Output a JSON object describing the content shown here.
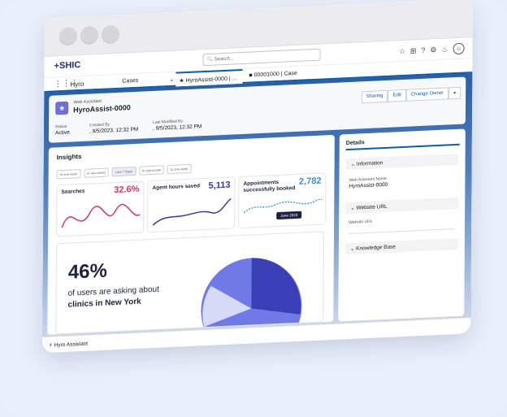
{
  "app": {
    "logo": "+SHIC",
    "workspace": "Hyro",
    "object_nav": "Cases"
  },
  "search": {
    "placeholder": "Search..."
  },
  "tabs": [
    {
      "label": "HyroAssist-0000 | ..."
    },
    {
      "label": "00001000 | Case"
    }
  ],
  "record": {
    "type": "Web Assistant",
    "name": "HyroAssist-0000",
    "buttons": [
      "Sharing",
      "Edit",
      "Change Owner"
    ],
    "status_label": "Status",
    "status_value": "Active",
    "created_label": "Created By",
    "created_value": ", 9/5/2023, 12:32 PM",
    "modified_label": "Last Modified By",
    "modified_value": ", 9/5/2023, 12:32 PM"
  },
  "insights": {
    "title": "Insights",
    "filters": [
      "In one week",
      "In two weeks",
      "Last 7 Days",
      "In one month",
      "In one week"
    ],
    "kpis": [
      {
        "title": "Searches",
        "value": "32.6%",
        "color": "#d6336c"
      },
      {
        "title": "Agent hours saved",
        "value": "5,113",
        "color": "#2f3a9c"
      },
      {
        "title": "Appointments successfully booked",
        "value": "2,782",
        "color": "#3a8fd8"
      }
    ],
    "tooltip": "June 2023",
    "big_stat": "46%",
    "big_line1": "of users are asking about",
    "big_line2": "clinics in New York"
  },
  "details": {
    "tab": "Details",
    "information": "Information",
    "name_label": "Web Assistant Name",
    "name_value": "HyroAssist-0000",
    "website_section": "Website URL",
    "website_label": "Website URL",
    "kb_section": "Knowledge Base"
  },
  "footer": {
    "label": "Hyro Assistant"
  }
}
